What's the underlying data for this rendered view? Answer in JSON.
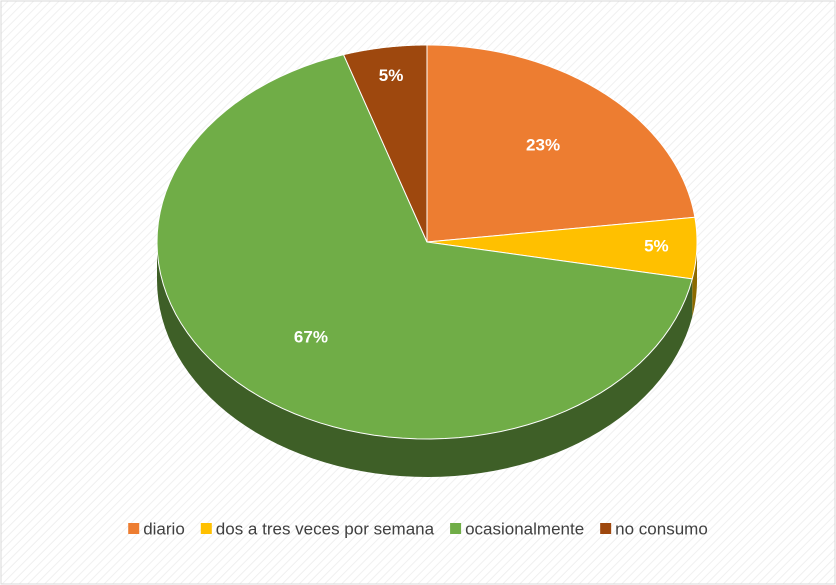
{
  "chart_data": {
    "type": "pie",
    "categories": [
      "diario",
      "dos a tres veces por semana",
      "ocasionalmente",
      "no consumo"
    ],
    "values": [
      23,
      5,
      67,
      5
    ],
    "value_labels": [
      "23%",
      "5%",
      "67%",
      "5%"
    ],
    "colors": [
      "#ed7d31",
      "#ffc000",
      "#70ad47",
      "#9e480e"
    ],
    "legend": "bottom"
  }
}
